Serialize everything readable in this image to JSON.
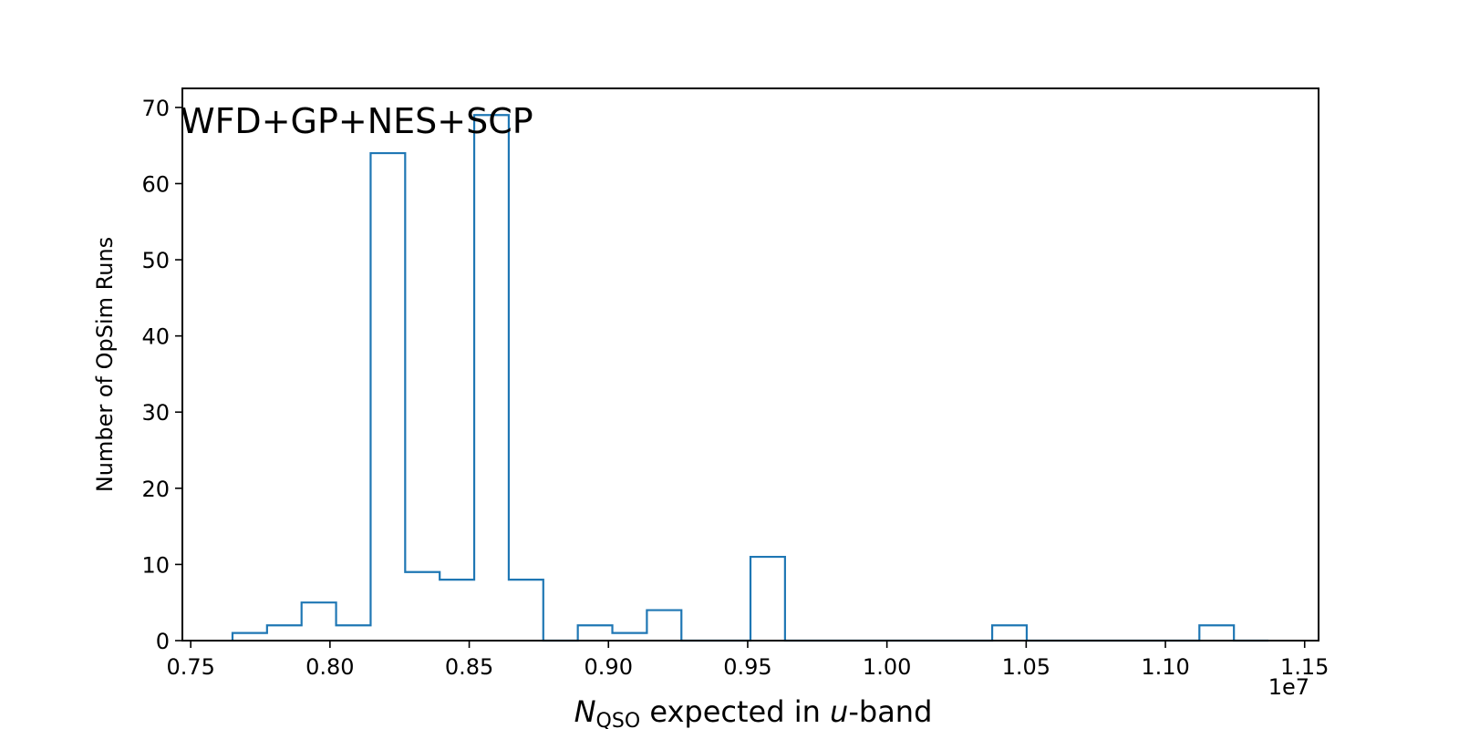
{
  "chart_data": {
    "type": "histogram",
    "bin_edges": [
      7650000,
      7774000,
      7898000,
      8022000,
      8146000,
      8270000,
      8394000,
      8518000,
      8642000,
      8766000,
      8890000,
      9014000,
      9138000,
      9262000,
      9386000,
      9510000,
      9634000,
      9758000,
      9882000,
      10006000,
      10130000,
      10254000,
      10378000,
      10502000,
      10626000,
      10750000,
      10874000,
      10998000,
      11122000,
      11246000,
      11370000
    ],
    "counts": [
      1,
      2,
      5,
      2,
      64,
      9,
      8,
      69,
      8,
      0,
      2,
      1,
      4,
      0,
      0,
      11,
      0,
      0,
      0,
      0,
      0,
      0,
      2,
      0,
      0,
      0,
      0,
      0,
      2,
      0
    ],
    "xlim": [
      7470000,
      11550000
    ],
    "ylim": [
      0,
      72.5
    ],
    "x_ticks": [
      7500000,
      8000000,
      8500000,
      9000000,
      9500000,
      10000000,
      10500000,
      11000000,
      11500000
    ],
    "x_tick_labels": [
      "0.75",
      "0.80",
      "0.85",
      "0.90",
      "0.95",
      "1.00",
      "1.05",
      "1.10",
      "1.15"
    ],
    "y_ticks": [
      0,
      10,
      20,
      30,
      40,
      50,
      60,
      70
    ],
    "y_tick_labels": [
      "0",
      "10",
      "20",
      "30",
      "40",
      "50",
      "60",
      "70"
    ],
    "offset_text": "1e7",
    "xlabel": {
      "n_symbol": "N",
      "subscript": "QSO",
      "middle": " expected in ",
      "u_symbol": "u",
      "tail": "-band"
    },
    "ylabel": "Number of OpSim Runs",
    "annotation": "WFD+GP+NES+SCP",
    "grid": false,
    "line_color": "#1f77b4",
    "axis_color": "#000000"
  }
}
